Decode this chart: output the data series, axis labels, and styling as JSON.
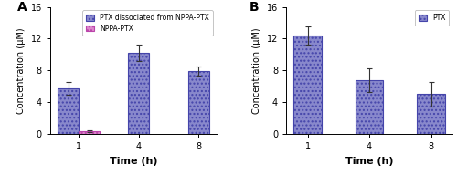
{
  "panel_A": {
    "label": "A",
    "time_points": [
      1,
      4,
      8
    ],
    "ptx_values": [
      5.7,
      10.2,
      7.9
    ],
    "ptx_errors": [
      0.8,
      1.0,
      0.55
    ],
    "nppa_values": [
      0.35
    ],
    "nppa_errors": [
      0.12
    ],
    "bar_color_ptx": "#8888cc",
    "bar_edge_ptx": "#4444aa",
    "bar_color_nppa": "#dd88cc",
    "bar_edge_nppa": "#bb44aa",
    "legend_ptx": "PTX dissociated from NPPA-PTX",
    "legend_nppa": "NPPA-PTX",
    "xlabel": "Time (h)",
    "ylabel": "Concentration (μM)",
    "ylim": [
      0,
      16
    ],
    "yticks": [
      0,
      4,
      8,
      12,
      16
    ]
  },
  "panel_B": {
    "label": "B",
    "time_points": [
      1,
      4,
      8
    ],
    "ptx_values": [
      12.4,
      6.8,
      5.0
    ],
    "ptx_errors": [
      1.1,
      1.5,
      1.5
    ],
    "bar_color_ptx": "#8888cc",
    "bar_edge_ptx": "#4444aa",
    "legend_ptx": "PTX",
    "xlabel": "Time (h)",
    "ylabel": "Concentration (μM)",
    "ylim": [
      0,
      16
    ],
    "yticks": [
      0,
      4,
      8,
      12,
      16
    ]
  }
}
